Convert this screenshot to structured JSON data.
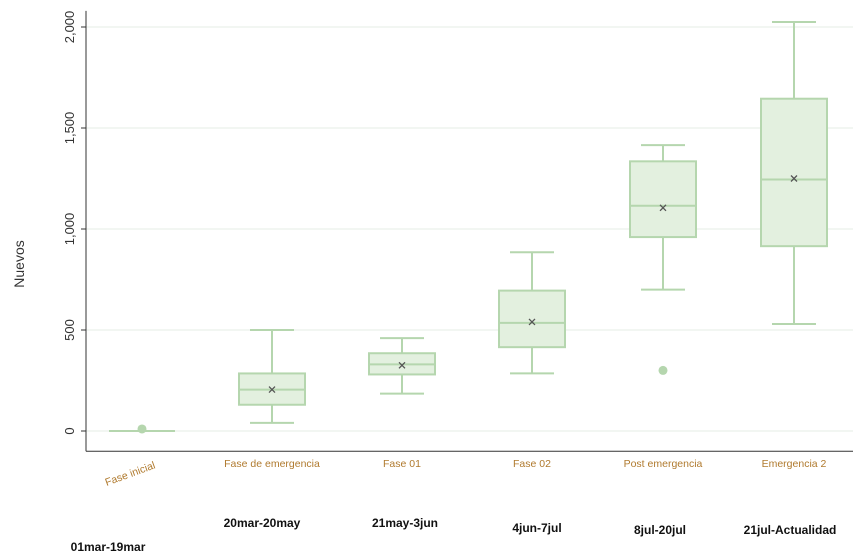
{
  "chart_data": {
    "type": "box",
    "ylabel": "Nuevos",
    "xlabel": "",
    "title": "",
    "ylim": [
      -100,
      2080
    ],
    "yticks": [
      0,
      500,
      1000,
      1500,
      2000
    ],
    "ytick_labels": [
      "0",
      "500",
      "1,000",
      "1,500",
      "2,000"
    ],
    "grid": "horizontal",
    "colors": {
      "box_fill": "#e3f0df",
      "box_stroke": "#b5d6ae",
      "grid": "#e6ece6",
      "axis": "#333333",
      "category_text": "#b07a2e"
    },
    "categories": [
      {
        "label": "Fase inicial",
        "date_range": "01mar-19mar",
        "min": 0,
        "q1": 0,
        "median": 0,
        "q3": 0,
        "max": 0,
        "mean": 0,
        "outliers": [
          10
        ]
      },
      {
        "label": "Fase de emergencia",
        "date_range": "20mar-20may",
        "min": 40,
        "q1": 130,
        "median": 205,
        "q3": 285,
        "max": 500,
        "mean": 205,
        "outliers": []
      },
      {
        "label": "Fase 01",
        "date_range": "21may-3jun",
        "min": 185,
        "q1": 280,
        "median": 330,
        "q3": 385,
        "max": 460,
        "mean": 325,
        "outliers": []
      },
      {
        "label": "Fase 02",
        "date_range": "4jun-7jul",
        "min": 285,
        "q1": 415,
        "median": 535,
        "q3": 695,
        "max": 885,
        "mean": 540,
        "outliers": []
      },
      {
        "label": "Post emergencia",
        "date_range": "8jul-20jul",
        "min": 700,
        "q1": 960,
        "median": 1115,
        "q3": 1335,
        "max": 1415,
        "mean": 1105,
        "outliers": [
          300
        ]
      },
      {
        "label": "Emergencia 2",
        "date_range": "21jul-Actualidad",
        "min": 530,
        "q1": 915,
        "median": 1245,
        "q3": 1645,
        "max": 2025,
        "mean": 1250,
        "outliers": []
      }
    ]
  }
}
